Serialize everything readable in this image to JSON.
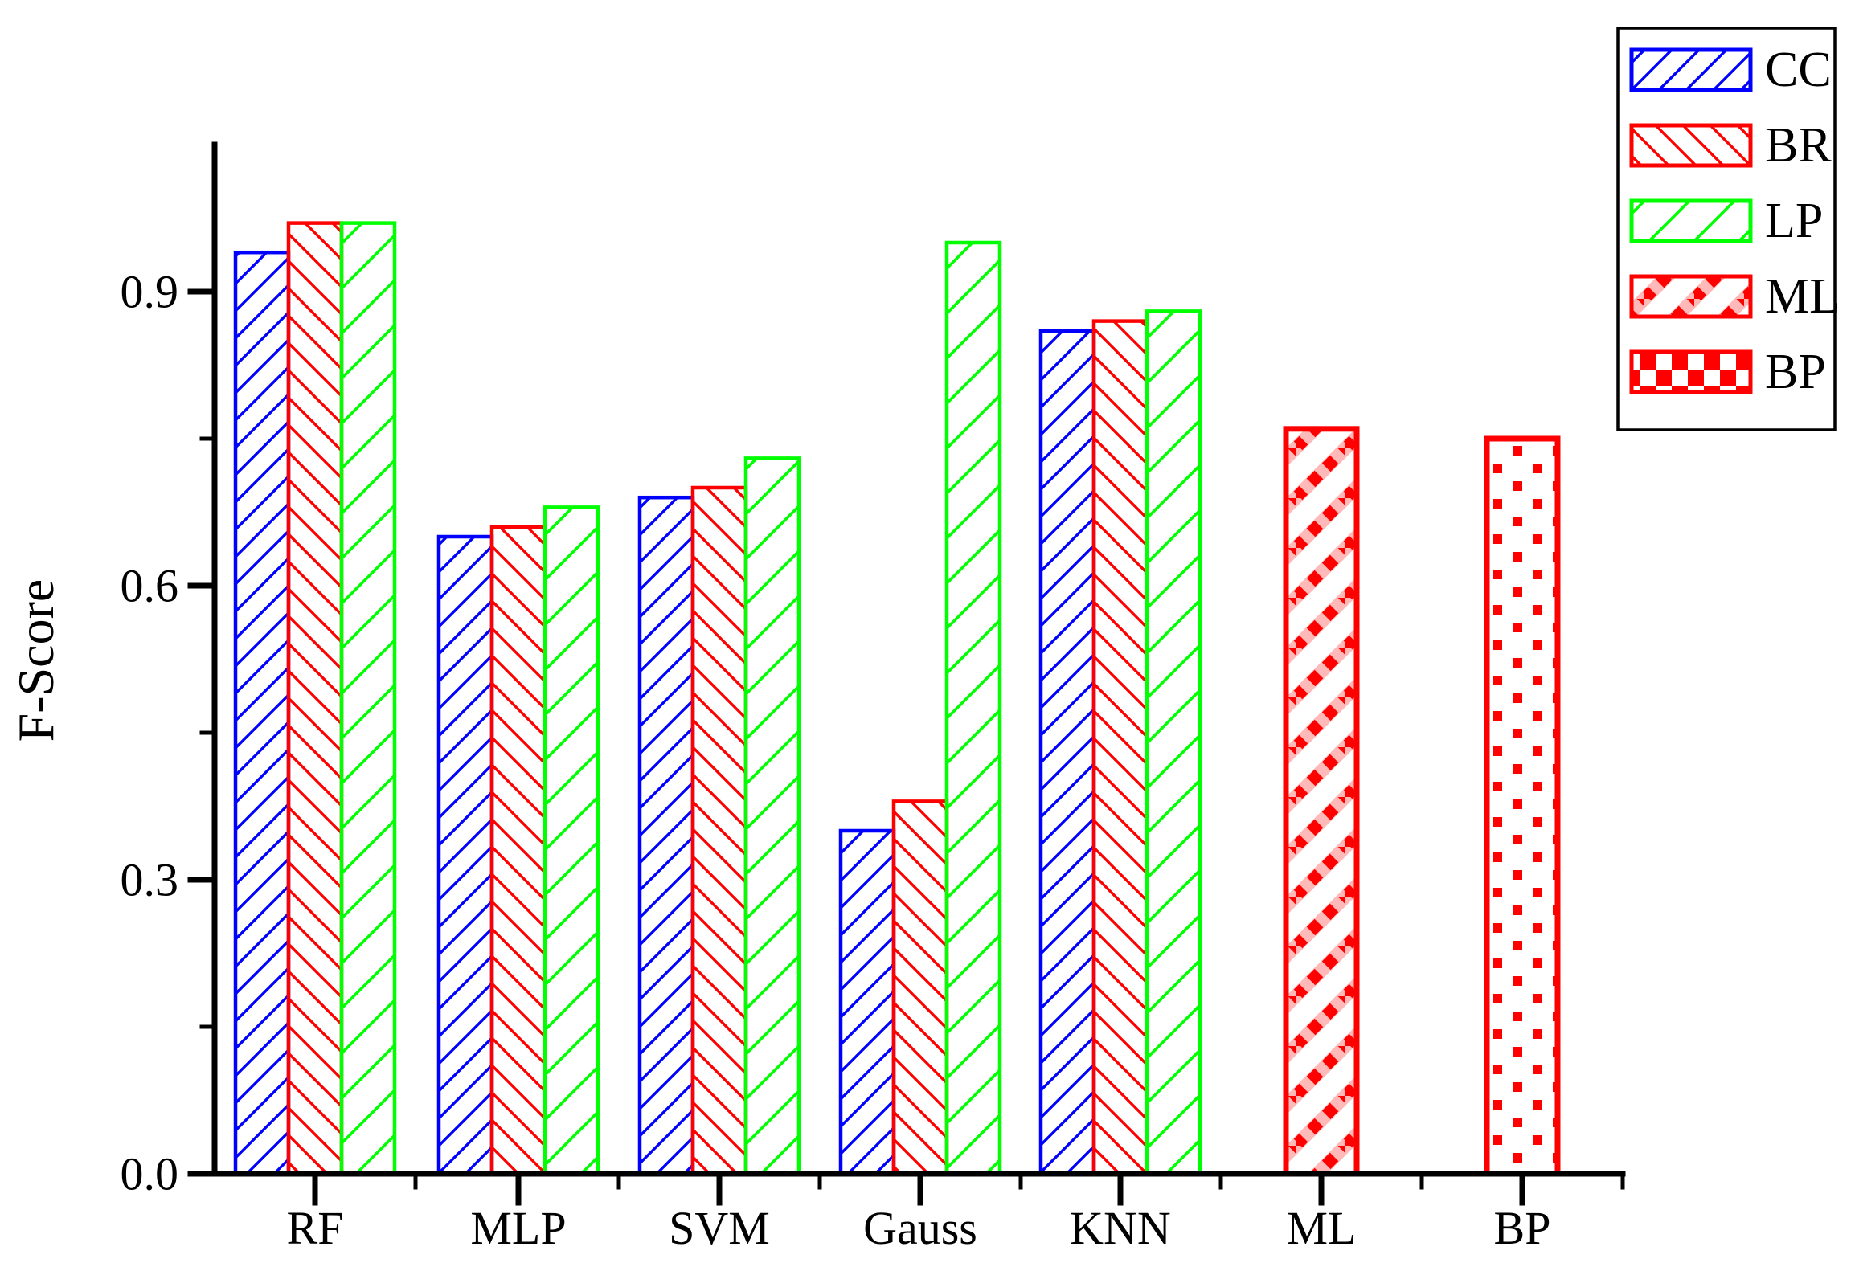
{
  "figure": {
    "background": "#ffffff",
    "axis_color": "#000000"
  },
  "chart_data": {
    "type": "bar",
    "title": "",
    "xlabel": "",
    "ylabel": "F-Score",
    "ylim": [
      0.0,
      1.05
    ],
    "yticks_major": [
      0.0,
      0.3,
      0.6,
      0.9
    ],
    "ytick_labels": [
      "0.0",
      "0.3",
      "0.6",
      "0.9"
    ],
    "yticks_minor": [
      0.15,
      0.45,
      0.75
    ],
    "grid": false,
    "categories": [
      "RF",
      "MLP",
      "SVM",
      "Gauss",
      "KNN",
      "ML",
      "BP"
    ],
    "series": [
      {
        "name": "CC",
        "color": "#0000FF",
        "hatch": "diagonal-up",
        "values": [
          0.94,
          0.65,
          0.69,
          0.35,
          0.86,
          null,
          null
        ]
      },
      {
        "name": "BR",
        "color": "#FF0000",
        "hatch": "diagonal-down",
        "values": [
          0.97,
          0.66,
          0.7,
          0.38,
          0.87,
          null,
          null
        ]
      },
      {
        "name": "LP",
        "color": "#00FF00",
        "hatch": "diagonal-up-wide",
        "values": [
          0.97,
          0.68,
          0.73,
          0.95,
          0.88,
          null,
          null
        ]
      },
      {
        "name": "ML",
        "color": "#FF0000",
        "hatch": "dotted-diagonal",
        "values": [
          null,
          null,
          null,
          null,
          null,
          0.76,
          null
        ]
      },
      {
        "name": "BP",
        "color": "#FF0000",
        "hatch": "checker-dots",
        "values": [
          null,
          null,
          null,
          null,
          null,
          null,
          0.75
        ]
      }
    ],
    "legend": {
      "position": "top-right",
      "entries": [
        {
          "label": "CC",
          "color": "#0000FF",
          "hatch": "diagonal-up"
        },
        {
          "label": "BR",
          "color": "#FF0000",
          "hatch": "diagonal-down"
        },
        {
          "label": "LP",
          "color": "#00FF00",
          "hatch": "diagonal-up-wide"
        },
        {
          "label": "ML",
          "color": "#FF0000",
          "hatch": "dotted-diagonal"
        },
        {
          "label": "BP",
          "color": "#FF0000",
          "hatch": "checker-legend"
        }
      ]
    }
  }
}
